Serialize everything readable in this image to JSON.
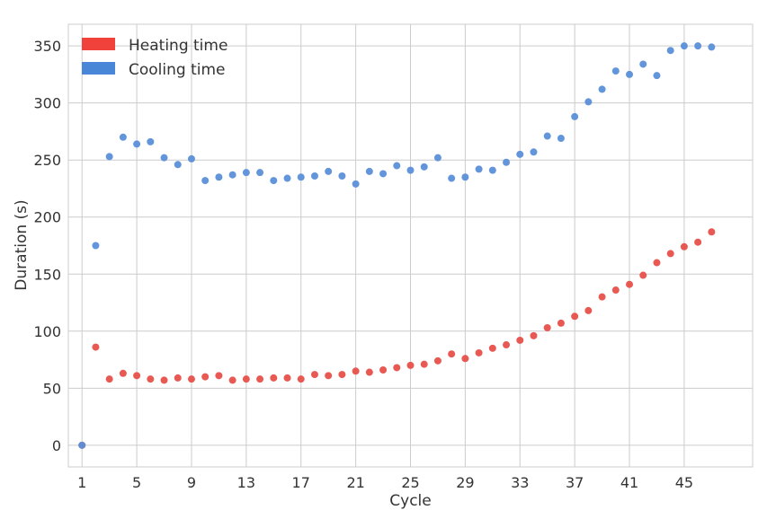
{
  "chart_data": {
    "type": "scatter",
    "xlabel": "Cycle",
    "ylabel": "Duration (s)",
    "xticks": [
      1,
      5,
      9,
      13,
      17,
      21,
      25,
      29,
      33,
      37,
      41,
      45
    ],
    "yticks": [
      0,
      50,
      100,
      150,
      200,
      250,
      300,
      350
    ],
    "xlim": [
      0,
      50
    ],
    "ylim": [
      -19,
      369
    ],
    "grid": true,
    "legend_position": "top-left",
    "x": [
      1,
      2,
      3,
      4,
      5,
      6,
      7,
      8,
      9,
      10,
      11,
      12,
      13,
      14,
      15,
      16,
      17,
      18,
      19,
      20,
      21,
      22,
      23,
      24,
      25,
      26,
      27,
      28,
      29,
      30,
      31,
      32,
      33,
      34,
      35,
      36,
      37,
      38,
      39,
      40,
      41,
      42,
      43,
      44,
      45,
      46,
      47
    ],
    "series": [
      {
        "name": "Heating time",
        "color": "#e8504a",
        "legend_color": "#f0413a",
        "values": [
          0,
          86,
          58,
          63,
          61,
          58,
          57,
          59,
          58,
          60,
          61,
          57,
          58,
          58,
          59,
          59,
          58,
          62,
          61,
          62,
          65,
          64,
          66,
          68,
          70,
          71,
          74,
          80,
          76,
          81,
          85,
          88,
          92,
          96,
          103,
          107,
          113,
          118,
          130,
          136,
          141,
          149,
          160,
          168,
          174,
          178,
          187
        ]
      },
      {
        "name": "Cooling time",
        "color": "#5b8fd9",
        "legend_color": "#4a86d8",
        "values": [
          0,
          175,
          253,
          270,
          264,
          266,
          252,
          246,
          251,
          232,
          235,
          237,
          239,
          239,
          232,
          234,
          235,
          236,
          240,
          236,
          229,
          240,
          238,
          245,
          241,
          244,
          252,
          234,
          235,
          242,
          241,
          248,
          255,
          257,
          271,
          269,
          288,
          301,
          312,
          328,
          325,
          334,
          324,
          346,
          350,
          350,
          349
        ]
      }
    ]
  }
}
